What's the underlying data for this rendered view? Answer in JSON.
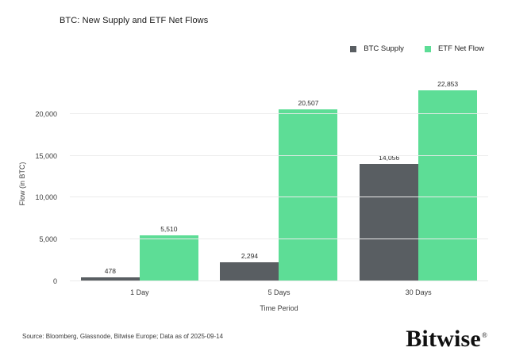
{
  "title": "BTC: New Supply and ETF Net Flows",
  "chart_data": {
    "type": "bar",
    "title": "BTC: New Supply and ETF Net Flows",
    "categories": [
      "1 Day",
      "5 Days",
      "30 Days"
    ],
    "series": [
      {
        "name": "BTC Supply",
        "color": "#595E62",
        "values": [
          478,
          2294,
          14056
        ],
        "labels": [
          "478",
          "2,294",
          "14,056"
        ]
      },
      {
        "name": "ETF Net Flow",
        "color": "#5DDD96",
        "values": [
          5510,
          20507,
          22853
        ],
        "labels": [
          "5,510",
          "20,507",
          "22,853"
        ]
      }
    ],
    "xlabel": "Time Period",
    "ylabel": "Flow (in BTC)",
    "ylim": [
      0,
      23200
    ],
    "yticks": {
      "values": [
        0,
        5000,
        10000,
        15000,
        20000
      ],
      "labels": [
        "0",
        "5,000",
        "10,000",
        "15,000",
        "20,000"
      ]
    },
    "grid": true,
    "legend_position": "top-right"
  },
  "footer": {
    "source": "Source: Bloomberg, Glassnode, Bitwise Europe; Data as of 2025-09-14",
    "logo_text": "Bitwise",
    "logo_registered": "®"
  }
}
